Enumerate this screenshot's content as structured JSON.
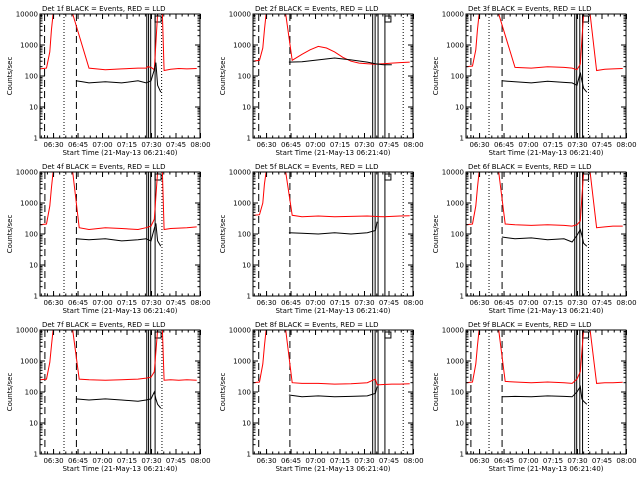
{
  "figure": {
    "xlabel": "Start Time (21-May-13 06:21:40)",
    "ylabel": "Counts/sec",
    "x_ticks": [
      "06:30",
      "06:45",
      "07:00",
      "07:15",
      "07:30",
      "07:45",
      "08:00"
    ],
    "y_ticks": [
      "1",
      "10",
      "100",
      "1000",
      "10000"
    ],
    "colors": {
      "events": "#000000",
      "lld": "#ff0000"
    }
  },
  "chart_data": [
    {
      "type": "line",
      "title": "Det 1f BLACK = Events, RED = LLD",
      "x_unit": "minutes after 06:21:40",
      "y_scale": "log",
      "ylim": [
        1,
        10000
      ],
      "series": [
        {
          "color": "#ff0000",
          "x": [
            0,
            4,
            6,
            7,
            8,
            9,
            10,
            12,
            14,
            16,
            20,
            30,
            40,
            50,
            60,
            65,
            66,
            68,
            70,
            72,
            74,
            75,
            76,
            80,
            85,
            90,
            96
          ],
          "y": [
            170,
            180,
            600,
            3000,
            10000,
            10000,
            10000,
            10000,
            10000,
            10000,
            10000,
            180,
            160,
            170,
            180,
            180,
            200,
            190,
            160,
            10000,
            10000,
            10000,
            150,
            165,
            175,
            170,
            175
          ]
        },
        {
          "color": "#000000",
          "x": [
            22,
            26,
            30,
            40,
            50,
            60,
            65,
            68,
            70,
            71,
            72,
            74
          ],
          "y": [
            70,
            65,
            60,
            65,
            60,
            70,
            60,
            70,
            160,
            270,
            50,
            30
          ]
        }
      ],
      "markers": {
        "dashed": [
          2.8,
          22.3
        ],
        "dotted": [
          14.7,
          74.5
        ],
        "solid": [
          65.4,
          66.5,
          67.8
        ],
        "box": [
          70.5
        ]
      }
    },
    {
      "type": "line",
      "title": "Det 2f BLACK = Events, RED = LLD",
      "x_unit": "minutes after 06:21:40",
      "y_scale": "log",
      "ylim": [
        1,
        10000
      ],
      "series": [
        {
          "color": "#ff0000",
          "x": [
            0,
            4,
            6,
            7,
            8,
            9,
            10,
            12,
            14,
            16,
            20,
            24,
            30,
            35,
            40,
            45,
            50,
            55,
            60,
            65,
            70,
            75,
            80,
            85,
            90,
            96
          ],
          "y": [
            300,
            320,
            800,
            3000,
            10000,
            10000,
            10000,
            10000,
            10000,
            10000,
            10000,
            320,
            500,
            700,
            900,
            800,
            600,
            400,
            300,
            260,
            250,
            240,
            250,
            260,
            270,
            280
          ]
        },
        {
          "color": "#000000",
          "x": [
            22,
            30,
            40,
            50,
            60,
            70,
            75,
            80,
            85
          ],
          "y": [
            280,
            290,
            330,
            380,
            330,
            280,
            250,
            230,
            230
          ]
        }
      ],
      "markers": {
        "dashed": [
          3.5,
          22.6
        ],
        "dotted": [
          92.0
        ],
        "solid": [
          73.3,
          74.8,
          76.6
        ],
        "box": [
          80.8
        ]
      }
    },
    {
      "type": "line",
      "title": "Det 3f BLACK = Events, RED = LLD",
      "x_unit": "minutes after 06:21:40",
      "y_scale": "log",
      "ylim": [
        1,
        10000
      ],
      "series": [
        {
          "color": "#ff0000",
          "x": [
            0,
            4,
            6,
            7,
            8,
            9,
            10,
            12,
            14,
            16,
            20,
            30,
            40,
            50,
            60,
            65,
            68,
            70,
            72,
            74,
            76,
            80,
            85,
            90,
            96
          ],
          "y": [
            200,
            210,
            700,
            3000,
            10000,
            10000,
            10000,
            10000,
            10000,
            10000,
            10000,
            190,
            180,
            200,
            190,
            180,
            160,
            240,
            10000,
            10000,
            10000,
            150,
            165,
            170,
            175
          ]
        },
        {
          "color": "#000000",
          "x": [
            22,
            30,
            40,
            50,
            60,
            65,
            68,
            70,
            71,
            72,
            74
          ],
          "y": [
            70,
            65,
            60,
            68,
            62,
            60,
            50,
            130,
            70,
            40,
            30
          ]
        }
      ],
      "markers": {
        "dashed": [
          3.0,
          22.1
        ],
        "dotted": [
          14.1,
          75.0
        ],
        "solid": [
          66.6,
          67.8,
          69.7
        ],
        "box": [
          71.4
        ]
      }
    },
    {
      "type": "line",
      "title": "Det 4f BLACK = Events, RED = LLD",
      "x_unit": "minutes after 06:21:40",
      "y_scale": "log",
      "ylim": [
        1,
        10000
      ],
      "series": [
        {
          "color": "#ff0000",
          "x": [
            0,
            4,
            6,
            7,
            8,
            9,
            10,
            12,
            14,
            16,
            20,
            24,
            30,
            40,
            50,
            60,
            65,
            68,
            70,
            72,
            74,
            75,
            76,
            80,
            85,
            90,
            96
          ],
          "y": [
            200,
            210,
            800,
            3000,
            10000,
            10000,
            10000,
            10000,
            10000,
            10000,
            10000,
            160,
            140,
            160,
            150,
            140,
            160,
            180,
            300,
            10000,
            10000,
            10000,
            140,
            150,
            155,
            160,
            170
          ]
        },
        {
          "color": "#000000",
          "x": [
            22,
            30,
            40,
            50,
            60,
            65,
            68,
            70,
            71,
            72,
            74
          ],
          "y": [
            70,
            65,
            70,
            60,
            65,
            70,
            60,
            150,
            220,
            60,
            40
          ]
        }
      ],
      "markers": {
        "dashed": [
          3.0,
          22.3
        ],
        "dotted": [
          14.7,
          74.7
        ],
        "solid": [
          65.4,
          66.5,
          67.8
        ],
        "box": [
          70.5
        ]
      }
    },
    {
      "type": "line",
      "title": "Det 5f BLACK = Events, RED = LLD",
      "x_unit": "minutes after 06:21:40",
      "y_scale": "log",
      "ylim": [
        1,
        10000
      ],
      "series": [
        {
          "color": "#ff0000",
          "x": [
            0,
            4,
            6,
            7,
            8,
            9,
            10,
            12,
            14,
            16,
            20,
            24,
            30,
            40,
            50,
            60,
            70,
            80,
            85,
            90,
            96
          ],
          "y": [
            400,
            420,
            1000,
            4000,
            10000,
            10000,
            10000,
            10000,
            10000,
            10000,
            10000,
            400,
            360,
            380,
            360,
            370,
            380,
            360,
            370,
            380,
            390
          ]
        },
        {
          "color": "#000000",
          "x": [
            22,
            30,
            40,
            50,
            60,
            70,
            75,
            76
          ],
          "y": [
            110,
            105,
            100,
            110,
            100,
            110,
            130,
            250
          ]
        }
      ],
      "markers": {
        "dashed": [
          3.5,
          22.6
        ],
        "dotted": [
          92.0
        ],
        "solid": [
          73.3,
          74.8,
          76.6
        ],
        "box": [
          80.8
        ]
      }
    },
    {
      "type": "line",
      "title": "Det 6f BLACK = Events, RED = LLD",
      "x_unit": "minutes after 06:21:40",
      "y_scale": "log",
      "ylim": [
        1,
        10000
      ],
      "series": [
        {
          "color": "#ff0000",
          "x": [
            0,
            4,
            6,
            7,
            8,
            9,
            10,
            12,
            14,
            16,
            20,
            24,
            30,
            40,
            50,
            60,
            65,
            68,
            70,
            72,
            74,
            76,
            80,
            85,
            90,
            96
          ],
          "y": [
            200,
            210,
            800,
            3000,
            10000,
            10000,
            10000,
            10000,
            10000,
            10000,
            10000,
            210,
            200,
            190,
            200,
            190,
            180,
            200,
            260,
            10000,
            10000,
            10000,
            160,
            170,
            180,
            180
          ]
        },
        {
          "color": "#000000",
          "x": [
            22,
            30,
            40,
            50,
            60,
            65,
            68,
            70,
            71,
            72,
            74
          ],
          "y": [
            80,
            70,
            75,
            65,
            70,
            55,
            90,
            140,
            90,
            50,
            40
          ]
        }
      ],
      "markers": {
        "dashed": [
          3.0,
          22.1
        ],
        "dotted": [
          14.1,
          75.0
        ],
        "solid": [
          66.6,
          67.8,
          69.7
        ],
        "box": [
          71.4
        ]
      }
    },
    {
      "type": "line",
      "title": "Det 7f BLACK = Events, RED = LLD",
      "x_unit": "minutes after 06:21:40",
      "y_scale": "log",
      "ylim": [
        1,
        10000
      ],
      "series": [
        {
          "color": "#ff0000",
          "x": [
            0,
            4,
            6,
            7,
            8,
            9,
            10,
            12,
            14,
            16,
            20,
            24,
            30,
            40,
            50,
            60,
            65,
            68,
            70,
            72,
            74,
            75,
            76,
            80,
            85,
            90,
            96
          ],
          "y": [
            250,
            260,
            900,
            3000,
            10000,
            10000,
            10000,
            10000,
            10000,
            10000,
            10000,
            260,
            250,
            240,
            250,
            260,
            280,
            300,
            450,
            10000,
            10000,
            10000,
            240,
            250,
            240,
            250,
            240
          ]
        },
        {
          "color": "#000000",
          "x": [
            22,
            30,
            40,
            50,
            60,
            65,
            68,
            70,
            71,
            72,
            74
          ],
          "y": [
            60,
            55,
            60,
            55,
            50,
            55,
            60,
            100,
            60,
            40,
            30
          ]
        }
      ],
      "markers": {
        "dashed": [
          3.0,
          22.3
        ],
        "dotted": [
          14.7,
          74.7
        ],
        "solid": [
          65.4,
          66.5,
          67.8
        ],
        "box": [
          70.5
        ]
      }
    },
    {
      "type": "line",
      "title": "Det 8f BLACK = Events, RED = LLD",
      "x_unit": "minutes after 06:21:40",
      "y_scale": "log",
      "ylim": [
        1,
        10000
      ],
      "series": [
        {
          "color": "#ff0000",
          "x": [
            0,
            4,
            6,
            7,
            8,
            9,
            10,
            12,
            14,
            16,
            20,
            24,
            30,
            40,
            50,
            60,
            70,
            75,
            76,
            80,
            85,
            90,
            96
          ],
          "y": [
            200,
            210,
            800,
            3000,
            10000,
            10000,
            10000,
            10000,
            10000,
            10000,
            10000,
            200,
            190,
            190,
            180,
            185,
            200,
            260,
            170,
            175,
            180,
            180,
            185
          ]
        },
        {
          "color": "#000000",
          "x": [
            22,
            30,
            40,
            50,
            60,
            70,
            75,
            76
          ],
          "y": [
            80,
            70,
            75,
            70,
            72,
            75,
            90,
            150
          ]
        }
      ],
      "markers": {
        "dashed": [
          3.5,
          22.6
        ],
        "dotted": [
          92.0
        ],
        "solid": [
          73.3,
          74.8,
          76.6
        ],
        "box": [
          80.8
        ]
      }
    },
    {
      "type": "line",
      "title": "Det 9f BLACK = Events, RED = LLD",
      "x_unit": "minutes after 06:21:40",
      "y_scale": "log",
      "ylim": [
        1,
        10000
      ],
      "series": [
        {
          "color": "#ff0000",
          "x": [
            0,
            4,
            6,
            7,
            8,
            9,
            10,
            12,
            14,
            16,
            20,
            24,
            30,
            40,
            50,
            60,
            65,
            68,
            70,
            72,
            74,
            76,
            80,
            85,
            90,
            96
          ],
          "y": [
            200,
            210,
            800,
            3000,
            10000,
            10000,
            10000,
            10000,
            10000,
            10000,
            10000,
            220,
            210,
            200,
            210,
            200,
            190,
            260,
            450,
            10000,
            10000,
            10000,
            190,
            200,
            200,
            205
          ]
        },
        {
          "color": "#000000",
          "x": [
            22,
            30,
            40,
            50,
            60,
            65,
            68,
            70,
            71,
            72,
            74
          ],
          "y": [
            70,
            72,
            70,
            75,
            72,
            70,
            100,
            150,
            60,
            50,
            40
          ]
        }
      ],
      "markers": {
        "dashed": [
          3.0,
          22.1
        ],
        "dotted": [
          14.1,
          75.0
        ],
        "solid": [
          66.6,
          67.8,
          69.7
        ],
        "box": [
          71.4
        ]
      }
    }
  ]
}
